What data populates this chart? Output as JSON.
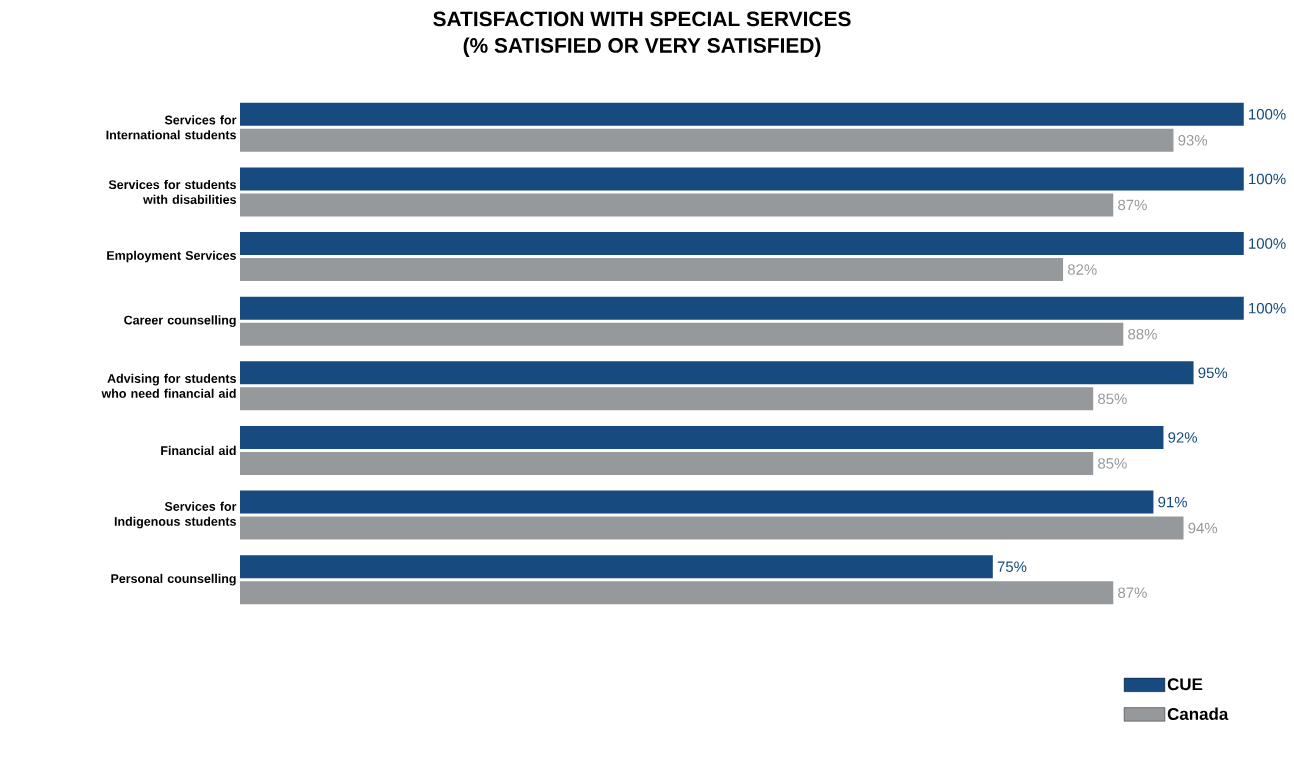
{
  "chart_data": {
    "type": "bar",
    "orientation": "horizontal",
    "title": "SATISFACTION WITH SPECIAL SERVICES",
    "subtitle": "(% SATISFIED OR VERY SATISFIED)",
    "categories": [
      "Services for International students",
      "Services for students with disabilities",
      "Employment Services",
      "Career counselling",
      "Advising for students who need financial aid",
      "Financial aid",
      "Services for Indigenous students",
      "Personal counselling"
    ],
    "series": [
      {
        "name": "CUE",
        "color": "#174a7e",
        "values": [
          100,
          100,
          100,
          100,
          95,
          92,
          91,
          75
        ],
        "value_labels": [
          "100%",
          "100%",
          "100%",
          "100%",
          "95%",
          "92%",
          "91%",
          "75%"
        ]
      },
      {
        "name": "Canada",
        "color": "#96999c",
        "values": [
          93,
          87,
          82,
          88,
          85,
          85,
          94,
          87
        ],
        "value_labels": [
          "93%",
          "87%",
          "82%",
          "88%",
          "85%",
          "85%",
          "94%",
          "87%"
        ]
      }
    ],
    "legend": "bottom right"
  }
}
